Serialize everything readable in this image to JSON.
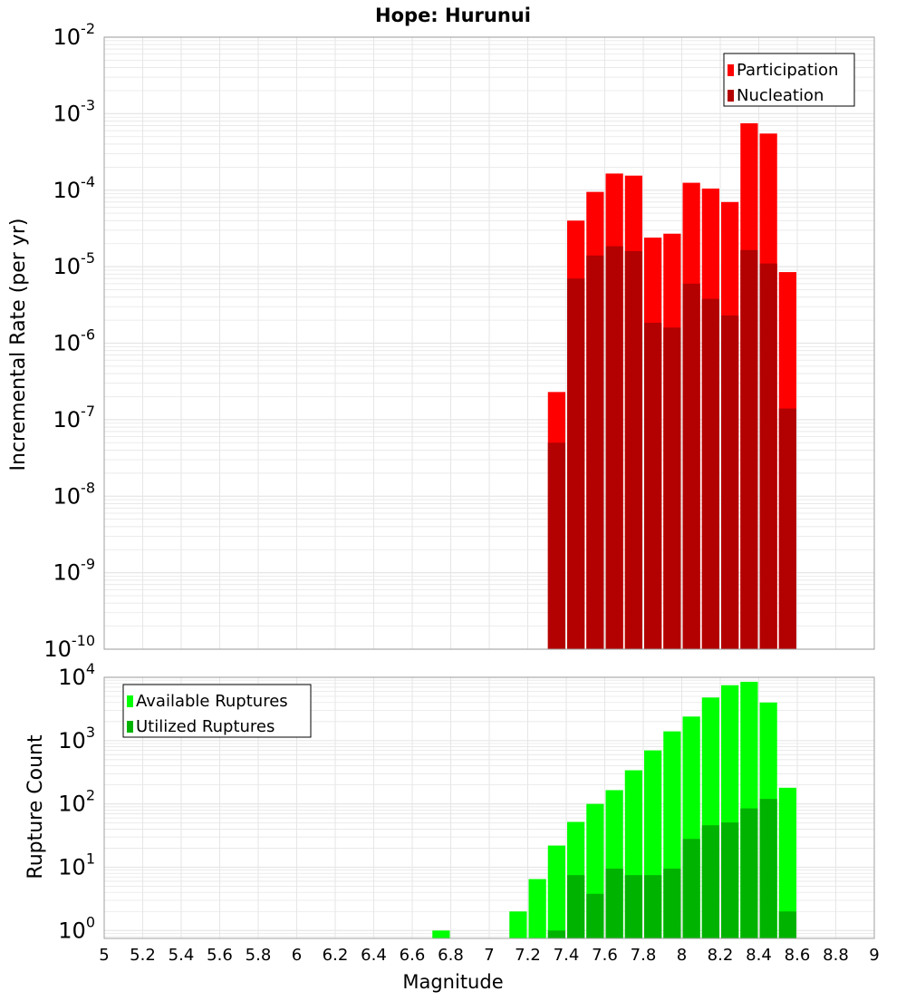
{
  "title": "Hope: Hurunui",
  "colors": {
    "participation": "#ff0000",
    "nucleation": "#b30000",
    "available": "#00ff00",
    "utilized": "#00b300",
    "grid": "#e6e6e6",
    "frame": "#a0a0a0"
  },
  "chart_data": [
    {
      "type": "bar",
      "panel": "top",
      "ylabel": "Incremental Rate (per yr)",
      "xlabel": "",
      "yscale": "log",
      "ylim": [
        1e-10,
        0.01
      ],
      "xlim": [
        5,
        9
      ],
      "bar_width": 0.1,
      "grid": true,
      "legend_position": "top-right",
      "y_ticks": [
        {
          "base": "10",
          "exp": "-10"
        },
        {
          "base": "10",
          "exp": "-9"
        },
        {
          "base": "10",
          "exp": "-8"
        },
        {
          "base": "10",
          "exp": "-7"
        },
        {
          "base": "10",
          "exp": "-6"
        },
        {
          "base": "10",
          "exp": "-5"
        },
        {
          "base": "10",
          "exp": "-4"
        },
        {
          "base": "10",
          "exp": "-3"
        },
        {
          "base": "10",
          "exp": "-2"
        }
      ],
      "x": [
        7.35,
        7.45,
        7.55,
        7.65,
        7.75,
        7.85,
        7.95,
        8.05,
        8.15,
        8.25,
        8.35,
        8.45,
        8.55
      ],
      "series": [
        {
          "name": "Participation",
          "values": [
            2.3e-07,
            4e-05,
            9.5e-05,
            0.000165,
            0.000155,
            2.4e-05,
            2.7e-05,
            0.000125,
            0.000105,
            7e-05,
            0.00075,
            0.00055,
            8.5e-06
          ]
        },
        {
          "name": "Nucleation",
          "values": [
            5e-08,
            7e-06,
            1.4e-05,
            1.85e-05,
            1.6e-05,
            1.85e-06,
            1.6e-06,
            6e-06,
            3.8e-06,
            2.3e-06,
            1.65e-05,
            1.1e-05,
            1.4e-07
          ]
        }
      ]
    },
    {
      "type": "bar",
      "panel": "bottom",
      "ylabel": "Rupture Count",
      "xlabel": "Magnitude",
      "yscale": "log",
      "ylim": [
        0.75,
        10000
      ],
      "xlim": [
        5,
        9
      ],
      "bar_width": 0.1,
      "grid": true,
      "legend_position": "top-left",
      "y_ticks": [
        {
          "base": "10",
          "exp": "0"
        },
        {
          "base": "10",
          "exp": "1"
        },
        {
          "base": "10",
          "exp": "2"
        },
        {
          "base": "10",
          "exp": "3"
        },
        {
          "base": "10",
          "exp": "4"
        }
      ],
      "x_ticks": [
        "5",
        "5.2",
        "5.4",
        "5.6",
        "5.8",
        "6",
        "6.2",
        "6.4",
        "6.6",
        "6.8",
        "7",
        "7.2",
        "7.4",
        "7.6",
        "7.8",
        "8",
        "8.2",
        "8.4",
        "8.6",
        "8.8",
        "9"
      ],
      "x": [
        6.75,
        7.15,
        7.25,
        7.35,
        7.45,
        7.55,
        7.65,
        7.75,
        7.85,
        7.95,
        8.05,
        8.15,
        8.25,
        8.35,
        8.45,
        8.55
      ],
      "series": [
        {
          "name": "Available Ruptures",
          "values": [
            1,
            2,
            6.5,
            22,
            52,
            100,
            165,
            340,
            700,
            1400,
            2400,
            4800,
            7500,
            8500,
            4000,
            180
          ]
        },
        {
          "name": "Utilized Ruptures",
          "values": [
            0,
            0,
            0,
            1,
            7.5,
            3.8,
            9.5,
            7.5,
            7.5,
            9.5,
            28,
            46,
            51,
            85,
            120,
            2
          ]
        }
      ]
    }
  ]
}
